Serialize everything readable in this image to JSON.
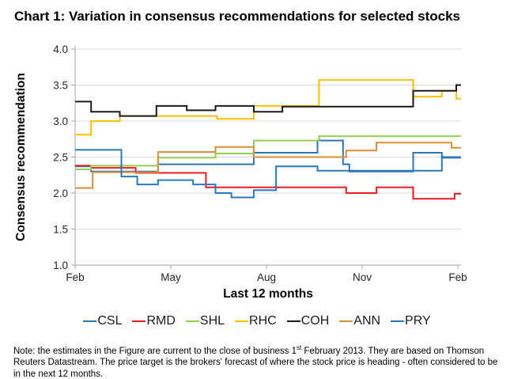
{
  "title": "Chart 1: Variation in consensus recommendations for selected stocks",
  "note": {
    "pre": "Note: the estimates in the Figure are current to the close of business 1",
    "sup": "st",
    "post": " February 2013. They are based on Thomson Reuters Datastream. The price target is the brokers' forecast of where the stock price is heading - often considered to be in the next 12 months."
  },
  "chart_data": {
    "type": "line",
    "subtype": "step",
    "xlabel": "Last 12 months",
    "ylabel": "Consensus recommendation",
    "x_domain": [
      0,
      12.1
    ],
    "ylim": [
      1.0,
      4.0
    ],
    "y_ticks": [
      "4.0",
      "3.5",
      "3.0",
      "2.5",
      "2.0",
      "1.5",
      "1.0"
    ],
    "x_ticks": [
      {
        "pos": 0,
        "label": "Feb"
      },
      {
        "pos": 3,
        "label": "May"
      },
      {
        "pos": 6,
        "label": "Aug"
      },
      {
        "pos": 9,
        "label": "Nov"
      },
      {
        "pos": 12,
        "label": "Feb"
      }
    ],
    "grid": "horizontal",
    "legend_position": "bottom",
    "colors": {
      "grid": "#D9D9D9",
      "axis": "#A6A6A6",
      "tick_label": "#262626"
    },
    "series": [
      {
        "name": "CSL",
        "color": "#2E75B6",
        "steps": [
          [
            0,
            2.37
          ],
          [
            0.5,
            2.3
          ],
          [
            2.6,
            2.4
          ],
          [
            5.6,
            2.56
          ],
          [
            7.6,
            2.73
          ],
          [
            8.4,
            2.4
          ],
          [
            8.6,
            2.3
          ],
          [
            10.6,
            2.56
          ],
          [
            11.5,
            2.49
          ],
          [
            12.1,
            2.49
          ]
        ]
      },
      {
        "name": "RMD",
        "color": "#EC1C24",
        "steps": [
          [
            0,
            2.38
          ],
          [
            0.5,
            2.35
          ],
          [
            1.9,
            2.28
          ],
          [
            4.1,
            2.08
          ],
          [
            8.5,
            2.0
          ],
          [
            9.45,
            2.08
          ],
          [
            10.6,
            1.92
          ],
          [
            11.9,
            1.99
          ],
          [
            12.1,
            1.99
          ]
        ]
      },
      {
        "name": "SHL",
        "color": "#92D050",
        "steps": [
          [
            0,
            2.33
          ],
          [
            0.5,
            2.38
          ],
          [
            2.6,
            2.49
          ],
          [
            4.4,
            2.55
          ],
          [
            5.6,
            2.73
          ],
          [
            7.65,
            2.79
          ],
          [
            12.1,
            2.79
          ]
        ]
      },
      {
        "name": "RHC",
        "color": "#FFC000",
        "steps": [
          [
            0,
            2.81
          ],
          [
            0.5,
            3.0
          ],
          [
            1.4,
            3.07
          ],
          [
            4.45,
            3.03
          ],
          [
            5.6,
            3.21
          ],
          [
            7.65,
            3.57
          ],
          [
            10.6,
            3.34
          ],
          [
            11.5,
            3.42
          ],
          [
            11.95,
            3.31
          ],
          [
            12.1,
            3.31
          ]
        ]
      },
      {
        "name": "COH",
        "color": "#1A1A1A",
        "steps": [
          [
            0,
            3.27
          ],
          [
            0.5,
            3.13
          ],
          [
            1.4,
            3.07
          ],
          [
            2.55,
            3.21
          ],
          [
            3.5,
            3.15
          ],
          [
            4.4,
            3.21
          ],
          [
            5.6,
            3.13
          ],
          [
            6.5,
            3.2
          ],
          [
            10.6,
            3.42
          ],
          [
            11.95,
            3.5
          ],
          [
            12.1,
            3.5
          ]
        ]
      },
      {
        "name": "ANN",
        "color": "#D78F37",
        "steps": [
          [
            0,
            2.07
          ],
          [
            0.55,
            2.29
          ],
          [
            2.6,
            2.57
          ],
          [
            4.4,
            2.64
          ],
          [
            5.6,
            2.5
          ],
          [
            8.5,
            2.59
          ],
          [
            9.45,
            2.7
          ],
          [
            11.8,
            2.63
          ],
          [
            12.1,
            2.63
          ]
        ]
      },
      {
        "name": "PRY",
        "color": "#2878BD",
        "steps": [
          [
            0,
            2.6
          ],
          [
            1.45,
            2.23
          ],
          [
            1.95,
            2.12
          ],
          [
            2.6,
            2.18
          ],
          [
            3.7,
            2.12
          ],
          [
            4.4,
            2.0
          ],
          [
            4.9,
            1.94
          ],
          [
            5.6,
            2.04
          ],
          [
            6.3,
            2.37
          ],
          [
            7.6,
            2.31
          ],
          [
            11.5,
            2.5
          ],
          [
            12.1,
            2.5
          ]
        ]
      }
    ]
  }
}
